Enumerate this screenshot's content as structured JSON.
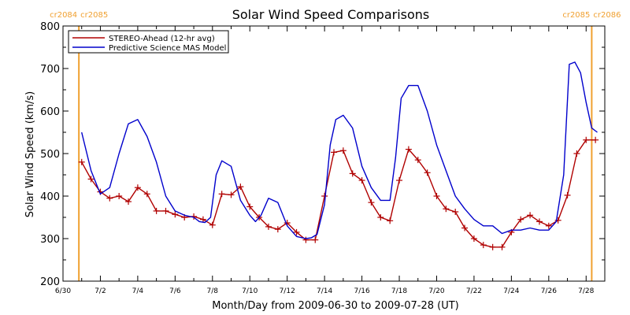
{
  "chart_data": {
    "type": "line",
    "title": "Solar Wind Speed Comparisons",
    "xlabel": "Month/Day from 2009-06-30 to 2009-07-28 (UT)",
    "ylabel": "Solar Wind Speed (km/s)",
    "xlim": [
      0,
      29
    ],
    "ylim": [
      200,
      800
    ],
    "y_ticks": [
      200,
      300,
      400,
      500,
      600,
      700,
      800
    ],
    "x_ticks": [
      {
        "x": 0,
        "label": "6/30"
      },
      {
        "x": 2,
        "label": "7/2"
      },
      {
        "x": 4,
        "label": "7/4"
      },
      {
        "x": 6,
        "label": "7/6"
      },
      {
        "x": 8,
        "label": "7/8"
      },
      {
        "x": 10,
        "label": "7/10"
      },
      {
        "x": 12,
        "label": "7/12"
      },
      {
        "x": 14,
        "label": "7/14"
      },
      {
        "x": 16,
        "label": "7/16"
      },
      {
        "x": 18,
        "label": "7/18"
      },
      {
        "x": 20,
        "label": "7/20"
      },
      {
        "x": 22,
        "label": "7/22"
      },
      {
        "x": 24,
        "label": "7/24"
      },
      {
        "x": 26,
        "label": "7/26"
      },
      {
        "x": 28,
        "label": "7/28"
      }
    ],
    "legend_position": "top-left",
    "grid": false,
    "carrington_markers": [
      {
        "x": 0.85,
        "label_left": "cr2084",
        "label_right": "cr2085",
        "color": "#f0a030"
      },
      {
        "x": 28.3,
        "label_left": "cr2085",
        "label_right": "cr2086",
        "color": "#f0a030"
      }
    ],
    "series": [
      {
        "name": "STEREO-Ahead (12-hr avg)",
        "color": "#b00000",
        "marker": "+",
        "x": [
          1.0,
          1.5,
          2.0,
          2.5,
          3.0,
          3.5,
          4.0,
          4.5,
          5.0,
          5.5,
          6.0,
          6.5,
          7.0,
          7.5,
          8.0,
          8.5,
          9.0,
          9.5,
          10.0,
          10.5,
          11.0,
          11.5,
          12.0,
          12.5,
          13.0,
          13.5,
          14.0,
          14.5,
          15.0,
          15.5,
          16.0,
          16.5,
          17.0,
          17.5,
          18.0,
          18.5,
          19.0,
          19.5,
          20.0,
          20.5,
          21.0,
          21.5,
          22.0,
          22.5,
          23.0,
          23.5,
          24.0,
          24.5,
          25.0,
          25.5,
          26.0,
          26.5,
          27.0,
          27.5,
          28.0,
          28.5
        ],
        "y": [
          480,
          440,
          410,
          395,
          400,
          387,
          420,
          405,
          365,
          365,
          357,
          350,
          352,
          345,
          332,
          405,
          403,
          422,
          375,
          350,
          328,
          322,
          337,
          315,
          297,
          297,
          400,
          503,
          507,
          453,
          437,
          385,
          350,
          342,
          437,
          510,
          485,
          455,
          400,
          370,
          363,
          325,
          300,
          285,
          280,
          280,
          315,
          345,
          355,
          340,
          330,
          343,
          402,
          500,
          532,
          532
        ]
      },
      {
        "name": "Predictive Science MAS Model",
        "color": "#0000cc",
        "marker": "none",
        "x": [
          1.0,
          1.5,
          2.0,
          2.5,
          3.0,
          3.5,
          4.0,
          4.5,
          5.0,
          5.5,
          6.0,
          6.5,
          7.0,
          7.3,
          7.6,
          7.9,
          8.2,
          8.5,
          9.0,
          9.5,
          10.0,
          10.3,
          10.6,
          11.0,
          11.5,
          12.0,
          12.5,
          13.0,
          13.3,
          13.6,
          14.0,
          14.3,
          14.6,
          15.0,
          15.5,
          16.0,
          16.5,
          17.0,
          17.5,
          17.8,
          18.1,
          18.5,
          19.0,
          19.5,
          20.0,
          20.5,
          21.0,
          21.5,
          22.0,
          22.5,
          23.0,
          23.5,
          24.0,
          24.5,
          25.0,
          25.5,
          26.0,
          26.4,
          26.8,
          27.1,
          27.4,
          27.7,
          28.0,
          28.3,
          28.6
        ],
        "y": [
          550,
          460,
          405,
          420,
          500,
          570,
          580,
          540,
          480,
          400,
          365,
          355,
          350,
          340,
          338,
          350,
          450,
          483,
          470,
          390,
          355,
          340,
          355,
          395,
          385,
          330,
          305,
          300,
          302,
          310,
          380,
          520,
          580,
          590,
          560,
          470,
          420,
          390,
          390,
          490,
          630,
          660,
          660,
          600,
          520,
          460,
          400,
          370,
          345,
          330,
          330,
          312,
          320,
          320,
          325,
          320,
          320,
          340,
          450,
          710,
          715,
          690,
          620,
          560,
          550
        ]
      }
    ]
  }
}
